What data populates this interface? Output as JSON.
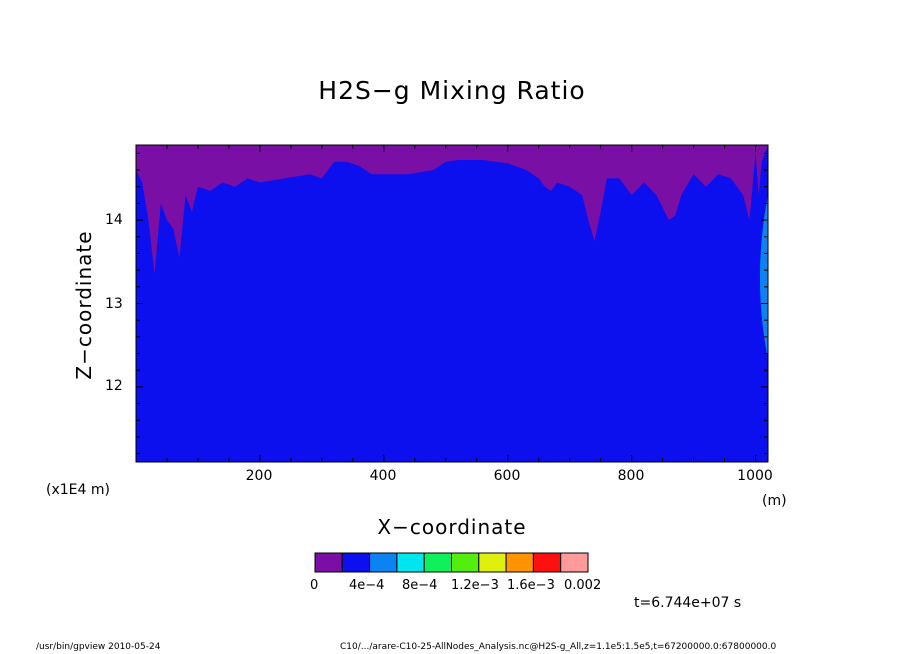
{
  "chart_data": {
    "type": "heatmap",
    "title": "H2S−g Mixing Ratio",
    "xlabel": "X−coordinate",
    "ylabel": "Z−coordinate",
    "xlim": [
      0,
      1020
    ],
    "ylim": [
      11.1,
      14.9
    ],
    "x_ticks": [
      200,
      400,
      600,
      800,
      1000
    ],
    "y_ticks": [
      12,
      13,
      14
    ],
    "x_unit": "(m)",
    "y_scale_label": "(x1E4 m)",
    "levels": [
      "0",
      "4e−4",
      "8e−4",
      "1.2e−3",
      "1.6e−3",
      "0.002"
    ],
    "colorbar_colors": [
      "#7a0fa5",
      "#0c10ee",
      "#0c83f2",
      "#00e6ee",
      "#10f05a",
      "#54ee0e",
      "#dff00c",
      "#ff9400",
      "#ff1010",
      "#ff9a9a"
    ],
    "background_color": "#0c10ee",
    "upper_region_color": "#7a0fa5",
    "upper_boundary": {
      "x": [
        0,
        10,
        20,
        30,
        40,
        50,
        60,
        70,
        80,
        90,
        100,
        120,
        140,
        160,
        180,
        200,
        240,
        280,
        300,
        320,
        340,
        360,
        380,
        400,
        440,
        480,
        500,
        520,
        560,
        600,
        630,
        650,
        660,
        670,
        680,
        700,
        720,
        730,
        740,
        750,
        760,
        780,
        800,
        820,
        840,
        860,
        870,
        880,
        900,
        920,
        940,
        960,
        980,
        990,
        1000,
        1005,
        1010,
        1020
      ],
      "z": [
        14.6,
        14.45,
        14.0,
        13.35,
        14.2,
        14.0,
        13.9,
        13.55,
        14.3,
        14.1,
        14.4,
        14.35,
        14.45,
        14.4,
        14.5,
        14.45,
        14.5,
        14.55,
        14.5,
        14.7,
        14.7,
        14.65,
        14.55,
        14.55,
        14.55,
        14.6,
        14.7,
        14.72,
        14.72,
        14.68,
        14.6,
        14.5,
        14.4,
        14.35,
        14.45,
        14.4,
        14.3,
        14.0,
        13.75,
        14.1,
        14.5,
        14.5,
        14.3,
        14.45,
        14.3,
        14.0,
        14.05,
        14.3,
        14.55,
        14.4,
        14.55,
        14.5,
        14.3,
        14.0,
        14.8,
        14.3,
        14.7,
        14.9
      ]
    },
    "side_patch": {
      "color": "#0c83f2",
      "x_min": 995,
      "x_max": 1020,
      "z_range": [
        12.4,
        14.3
      ]
    },
    "time_label": "t=6.744e+07 s"
  },
  "footer": {
    "program": "/usr/bin/gpview   2010-05-24",
    "source": "C10/.../arare-C10-25-AllNodes_Analysis.nc@H2S-g_All,z=1.1e5:1.5e5,t=67200000.0:67800000.0"
  }
}
